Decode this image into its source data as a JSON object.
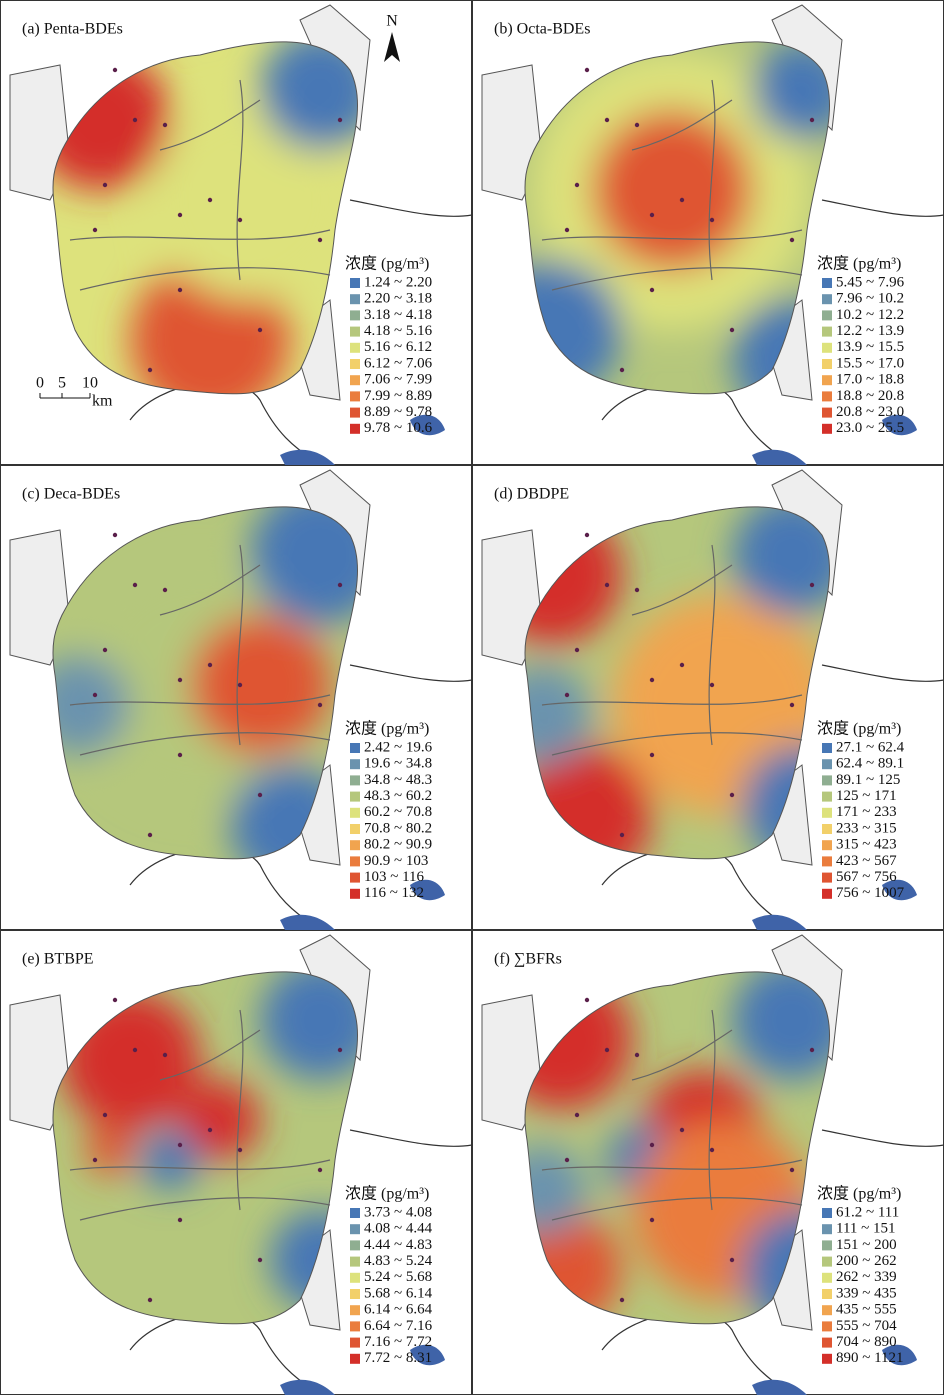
{
  "north": "N",
  "scale_bar": {
    "labels": [
      "0",
      "5",
      "10"
    ],
    "unit": "km"
  },
  "panels": [
    {
      "title": "(a) Penta-BDEs",
      "legend_title": "浓度 (pg/m³)",
      "legend": [
        "1.24 ~ 2.20",
        "2.20 ~ 3.18",
        "3.18 ~ 4.18",
        "4.18 ~ 5.16",
        "5.16 ~ 6.12",
        "6.12 ~ 7.06",
        "7.06 ~ 7.99",
        "7.99 ~ 8.89",
        "8.89 ~ 9.78",
        "9.78 ~ 10.6"
      ]
    },
    {
      "title": "(b) Octa-BDEs",
      "legend_title": "浓度 (pg/m³)",
      "legend": [
        "5.45 ~ 7.96",
        "7.96 ~ 10.2",
        "10.2 ~ 12.2",
        "12.2 ~ 13.9",
        "13.9 ~ 15.5",
        "15.5 ~ 17.0",
        "17.0 ~ 18.8",
        "18.8 ~ 20.8",
        "20.8 ~ 23.0",
        "23.0 ~ 25.5"
      ]
    },
    {
      "title": "(c) Deca-BDEs",
      "legend_title": "浓度 (pg/m³)",
      "legend": [
        "2.42 ~ 19.6",
        "19.6 ~ 34.8",
        "34.8 ~ 48.3",
        "48.3 ~ 60.2",
        "60.2 ~ 70.8",
        "70.8 ~ 80.2",
        "80.2 ~ 90.9",
        "90.9 ~ 103",
        "103 ~ 116",
        "116 ~ 132"
      ]
    },
    {
      "title": "(d) DBDPE",
      "legend_title": "浓度 (pg/m³)",
      "legend": [
        "27.1 ~ 62.4",
        "62.4 ~ 89.1",
        "89.1 ~ 125",
        "125 ~ 171",
        "171 ~ 233",
        "233 ~ 315",
        "315 ~ 423",
        "423 ~ 567",
        "567 ~ 756",
        "756 ~ 1007"
      ]
    },
    {
      "title": "(e) BTBPE",
      "legend_title": "浓度 (pg/m³)",
      "legend": [
        "3.73 ~ 4.08",
        "4.08 ~ 4.44",
        "4.44 ~ 4.83",
        "4.83 ~ 5.24",
        "5.24 ~ 5.68",
        "5.68 ~ 6.14",
        "6.14 ~ 6.64",
        "6.64 ~ 7.16",
        "7.16 ~ 7.72",
        "7.72 ~ 8.31"
      ]
    },
    {
      "title": "(f) ∑BFRs",
      "legend_title": "浓度 (pg/m³)",
      "legend": [
        "61.2 ~ 111",
        "111 ~ 151",
        "151 ~ 200",
        "200 ~ 262",
        "262 ~ 339",
        "339 ~ 435",
        "435 ~ 555",
        "555 ~ 704",
        "704 ~ 890",
        "890 ~ 1121"
      ]
    }
  ]
}
